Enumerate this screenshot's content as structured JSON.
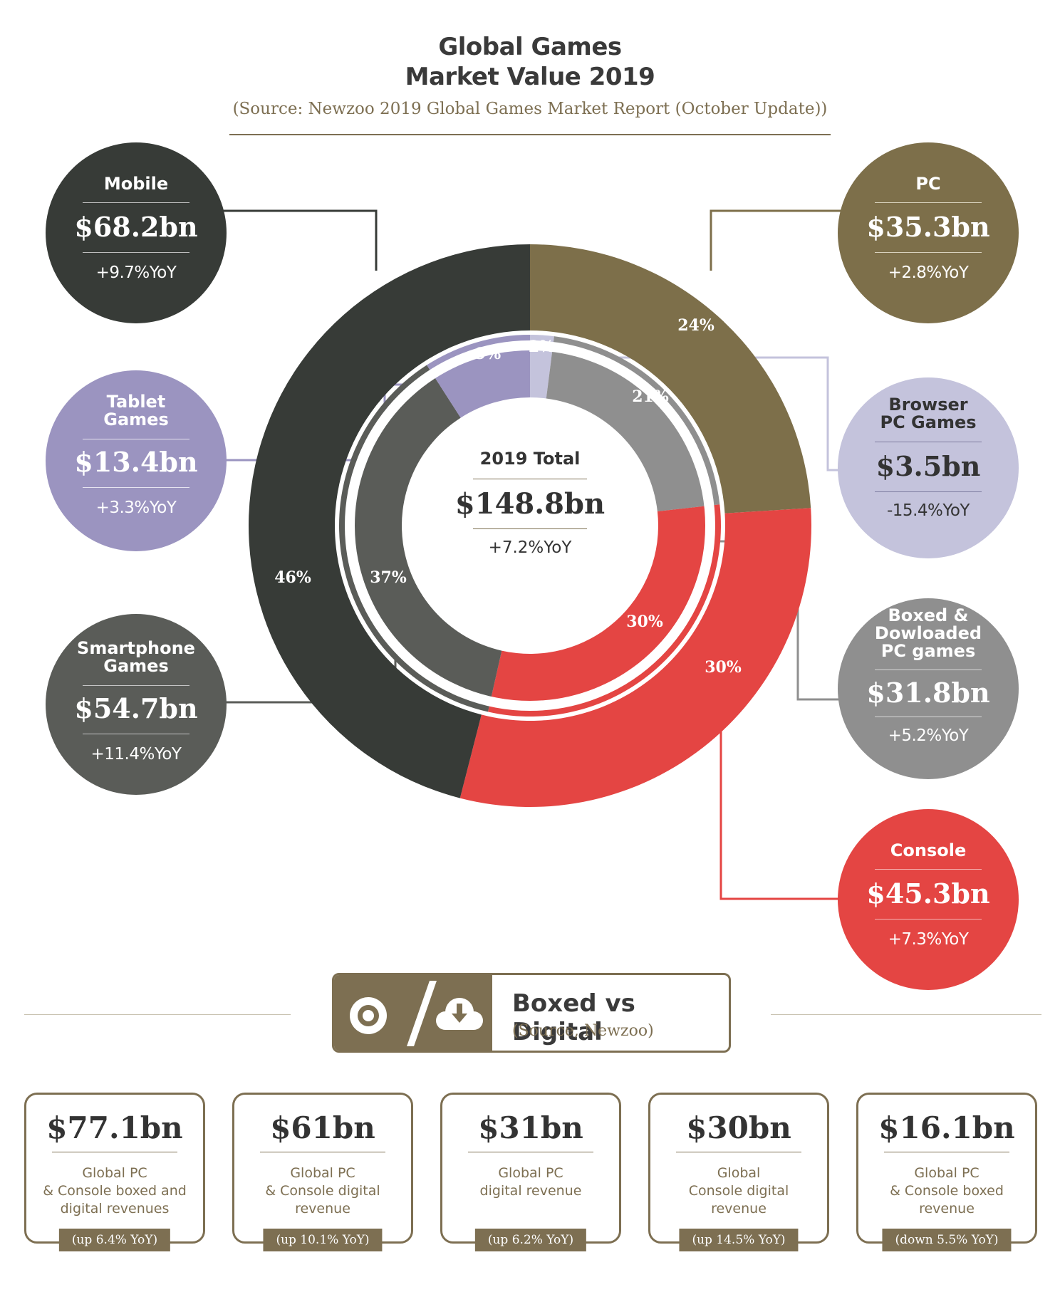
{
  "header": {
    "title_line1": "Global Games",
    "title_line2": "Market Value 2019",
    "source": "(Source: Newzoo 2019 Global Games Market Report (October Update))"
  },
  "center": {
    "label": "2019 Total",
    "value": "$148.8bn",
    "yoy": "+7.2%YoY"
  },
  "segments": {
    "mobile": {
      "label": "Mobile",
      "value": "$68.2bn",
      "yoy": "+9.7%YoY",
      "color": "#373b37"
    },
    "tablet": {
      "label1": "Tablet",
      "label2": "Games",
      "value": "$13.4bn",
      "yoy": "+3.3%YoY",
      "color": "#9b94c0"
    },
    "smartphone": {
      "label1": "Smartphone",
      "label2": "Games",
      "value": "$54.7bn",
      "yoy": "+11.4%YoY",
      "color": "#5a5c58"
    },
    "pc": {
      "label": "PC",
      "value": "$35.3bn",
      "yoy": "+2.8%YoY",
      "color": "#7d6f4a"
    },
    "browser": {
      "label1": "Browser",
      "label2": "PC Games",
      "value": "$3.5bn",
      "yoy": "-15.4%YoY",
      "color": "#c4c3dc"
    },
    "boxed": {
      "label1": "Boxed &",
      "label2": "Dowloaded",
      "label3": "PC games",
      "value": "$31.8bn",
      "yoy": "+5.2%YoY",
      "color": "#8f8f8f"
    },
    "console": {
      "label": "Console",
      "value": "$45.3bn",
      "yoy": "+7.3%YoY",
      "color": "#e44543"
    }
  },
  "chart_data": {
    "type": "pie",
    "title": "Global Games Market Value 2019",
    "outer_ring": [
      {
        "name": "PC",
        "value": 24,
        "label": "24%",
        "color": "#7d6f4a"
      },
      {
        "name": "Console",
        "value": 30,
        "label": "30%",
        "color": "#e44543"
      },
      {
        "name": "Mobile",
        "value": 46,
        "label": "46%",
        "color": "#373b37"
      }
    ],
    "inner_ring": [
      {
        "name": "Browser PC Games",
        "value": 2,
        "label": "2%",
        "color": "#c4c3dc"
      },
      {
        "name": "Boxed & Dowloaded PC games",
        "value": 21,
        "label": "21%",
        "color": "#8f8f8f"
      },
      {
        "name": "Console",
        "value": 30,
        "label": "30%",
        "color": "#e44543"
      },
      {
        "name": "Smartphone Games",
        "value": 37,
        "label": "37%",
        "color": "#5a5c58"
      },
      {
        "name": "Tablet Games",
        "value": 9,
        "label": "9%",
        "color": "#9b94c0"
      }
    ]
  },
  "boxed_vs_digital": {
    "title": "Boxed vs Digital",
    "source": "(Source, Newzoo)",
    "cards": [
      {
        "value": "$77.1bn",
        "desc": [
          "Global PC",
          "& Console boxed and",
          "digital revenues"
        ],
        "tag": "(up 6.4% YoY)"
      },
      {
        "value": "$61bn",
        "desc": [
          "Global PC",
          "& Console digital",
          "revenue"
        ],
        "tag": "(up 10.1% YoY)"
      },
      {
        "value": "$31bn",
        "desc": [
          "Global PC",
          "digital revenue"
        ],
        "tag": "(up 6.2% YoY)"
      },
      {
        "value": "$30bn",
        "desc": [
          "Global",
          "Console digital",
          "revenue"
        ],
        "tag": "(up 14.5% YoY)"
      },
      {
        "value": "$16.1bn",
        "desc": [
          "Global PC",
          "& Console boxed",
          "revenue"
        ],
        "tag": "(down 5.5% YoY)"
      }
    ]
  }
}
